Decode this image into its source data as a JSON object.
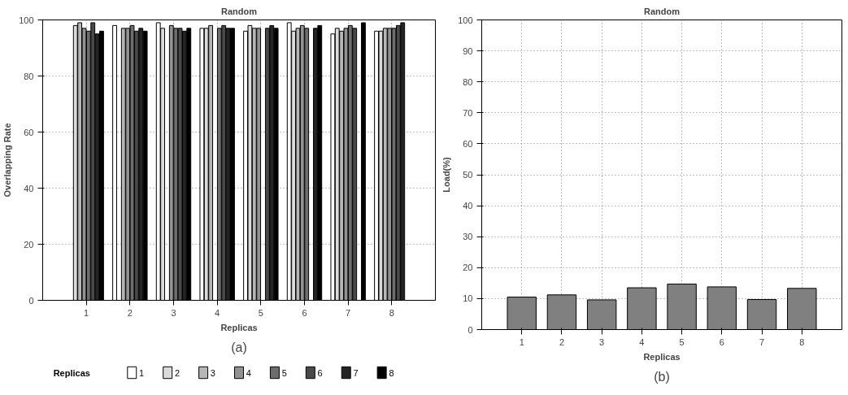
{
  "chart_data": [
    {
      "type": "bar",
      "title": "Random",
      "xlabel": "Replicas",
      "ylabel": "Overlapping Rate",
      "legend_title": "Replicas",
      "categories": [
        "1",
        "2",
        "3",
        "4",
        "5",
        "6",
        "7",
        "8"
      ],
      "ylim": [
        0,
        100
      ],
      "yticks": [
        0,
        20,
        40,
        60,
        80,
        100
      ],
      "grid": true,
      "legend": "bottom",
      "annotations": [
        "(a)"
      ],
      "series": [
        {
          "name": "1",
          "color": "#ffffff",
          "values": [
            0,
            98,
            99,
            97,
            96,
            99,
            95,
            96
          ]
        },
        {
          "name": "2",
          "color": "#dbdbdb",
          "values": [
            98,
            0,
            97,
            97,
            98,
            96,
            97,
            96
          ]
        },
        {
          "name": "3",
          "color": "#b6b6b6",
          "values": [
            99,
            97,
            0,
            98,
            97,
            97,
            96,
            97
          ]
        },
        {
          "name": "4",
          "color": "#929292",
          "values": [
            97,
            97,
            98,
            0,
            97,
            98,
            97,
            97
          ]
        },
        {
          "name": "5",
          "color": "#6d6d6d",
          "values": [
            96,
            98,
            97,
            97,
            0,
            97,
            98,
            97
          ]
        },
        {
          "name": "6",
          "color": "#494949",
          "values": [
            99,
            96,
            97,
            98,
            97,
            0,
            97,
            98
          ]
        },
        {
          "name": "7",
          "color": "#242424",
          "values": [
            95,
            97,
            96,
            97,
            98,
            97,
            0,
            99
          ]
        },
        {
          "name": "8",
          "color": "#000000",
          "values": [
            96,
            96,
            97,
            97,
            97,
            98,
            99,
            0
          ]
        }
      ]
    },
    {
      "type": "bar",
      "title": "Random",
      "xlabel": "Replicas",
      "ylabel": "Load(%)",
      "categories": [
        "1",
        "2",
        "3",
        "4",
        "5",
        "6",
        "7",
        "8"
      ],
      "ylim": [
        0,
        100
      ],
      "yticks": [
        0,
        10,
        20,
        30,
        40,
        50,
        60,
        70,
        80,
        90,
        100
      ],
      "grid": true,
      "annotations": [
        "(b)"
      ],
      "series": [
        {
          "color": "#808080",
          "values": [
            10.5,
            11.2,
            9.6,
            13.5,
            14.7,
            13.8,
            9.7,
            13.3
          ]
        }
      ]
    }
  ]
}
